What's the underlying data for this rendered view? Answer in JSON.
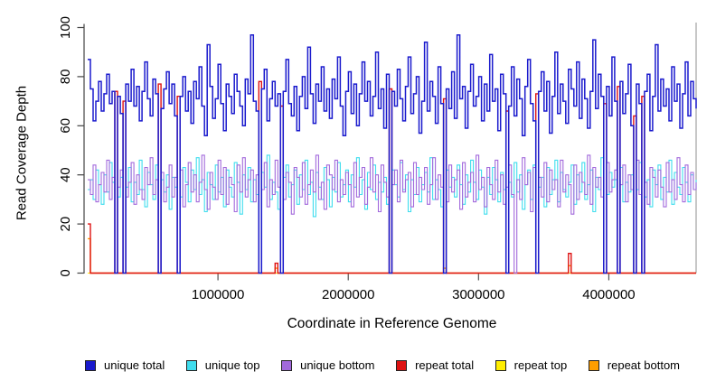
{
  "chart_data": {
    "type": "line",
    "step": true,
    "title": "",
    "xlabel": "Coordinate in Reference Genome",
    "ylabel": "Read Coverage Depth",
    "xlim": [
      0,
      4670000
    ],
    "ylim": [
      0,
      100
    ],
    "x_ticks": [
      1000000,
      2000000,
      3000000,
      4000000
    ],
    "y_ticks": [
      0,
      20,
      40,
      60,
      80,
      100
    ],
    "grid": false,
    "legend_position": "bottom",
    "n_points": 225,
    "x_step": 20848,
    "axis_color": "#444444",
    "tick_color": "#555555",
    "right_border_color": "#999999",
    "series": [
      {
        "name": "unique total",
        "color": "#1A1ACD",
        "values": [
          87,
          75,
          62,
          70,
          78,
          66,
          73,
          81,
          69,
          74,
          0,
          72,
          65,
          0,
          77,
          70,
          83,
          68,
          76,
          62,
          74,
          86,
          71,
          64,
          79,
          73,
          0,
          67,
          75,
          82,
          69,
          77,
          64,
          0,
          72,
          80,
          66,
          74,
          61,
          78,
          71,
          84,
          68,
          56,
          93,
          76,
          63,
          71,
          85,
          69,
          58,
          77,
          72,
          65,
          81,
          74,
          68,
          60,
          79,
          73,
          97,
          70,
          66,
          0,
          75,
          83,
          62,
          71,
          78,
          68,
          73,
          0,
          74,
          87,
          69,
          64,
          76,
          58,
          72,
          80,
          67,
          92,
          73,
          61,
          77,
          70,
          84,
          66,
          75,
          63,
          79,
          71,
          88,
          68,
          56,
          74,
          82,
          65,
          77,
          60,
          73,
          86,
          70,
          78,
          64,
          72,
          90,
          67,
          75,
          59,
          81,
          0,
          74,
          68,
          83,
          71,
          62,
          76,
          88,
          65,
          73,
          80,
          57,
          70,
          94,
          66,
          78,
          72,
          61,
          84,
          69,
          0,
          75,
          67,
          82,
          63,
          97,
          71,
          76,
          59,
          74,
          85,
          68,
          72,
          80,
          62,
          77,
          66,
          89,
          70,
          75,
          58,
          81,
          73,
          0,
          68,
          84,
          64,
          79,
          71,
          56,
          76,
          87,
          69,
          62,
          0,
          74,
          82,
          66,
          78,
          57,
          72,
          90,
          65,
          77,
          70,
          61,
          83,
          75,
          68,
          86,
          63,
          79,
          71,
          59,
          74,
          95,
          67,
          81,
          72,
          0,
          76,
          64,
          88,
          70,
          0,
          78,
          65,
          73,
          85,
          60,
          0,
          77,
          69,
          0,
          74,
          81,
          58,
          72,
          93,
          66,
          79,
          68,
          75,
          62,
          84,
          70,
          77,
          59,
          73,
          86,
          64,
          78,
          71,
          67
        ]
      },
      {
        "name": "unique top",
        "color": "#3FDDEE",
        "values": [
          34,
          38,
          30,
          42,
          36,
          28,
          40,
          33,
          45,
          37,
          0,
          31,
          39,
          0,
          35,
          43,
          29,
          37,
          32,
          46,
          34,
          27,
          41,
          36,
          30,
          44,
          0,
          38,
          33,
          40,
          26,
          39,
          35,
          0,
          31,
          43,
          37,
          29,
          42,
          34,
          47,
          32,
          38,
          25,
          41,
          36,
          30,
          44,
          33,
          39,
          27,
          42,
          35,
          31,
          45,
          37,
          24,
          40,
          34,
          43,
          29,
          38,
          32,
          0,
          41,
          35,
          48,
          30,
          37,
          33,
          26,
          0,
          39,
          44,
          31,
          36,
          42,
          28,
          40,
          34,
          46,
          32,
          37,
          23,
          41,
          35,
          30,
          43,
          38,
          27,
          39,
          33,
          45,
          31,
          36,
          42,
          29,
          40,
          35,
          47,
          32,
          38,
          26,
          41,
          34,
          44,
          30,
          37,
          33,
          39,
          28,
          0,
          42,
          36,
          31,
          45,
          34,
          40,
          25,
          38,
          32,
          43,
          29,
          36,
          41,
          33,
          47,
          30,
          38,
          34,
          27,
          0,
          42,
          35,
          39,
          31,
          44,
          36,
          28,
          40,
          33,
          46,
          37,
          30,
          42,
          35,
          24,
          39,
          32,
          43,
          38,
          29,
          41,
          34,
          0,
          37,
          31,
          45,
          33,
          40,
          26,
          36,
          42,
          30,
          44,
          0,
          35,
          39,
          27,
          43,
          32,
          38,
          46,
          29,
          41,
          34,
          31,
          37,
          44,
          28,
          40,
          33,
          45,
          30,
          36,
          42,
          25,
          39,
          34,
          47,
          0,
          32,
          41,
          35,
          38,
          0,
          43,
          29,
          37,
          33,
          40,
          0,
          34,
          45,
          0,
          31,
          38,
          27,
          42,
          36,
          44,
          30,
          39,
          33,
          46,
          28,
          41,
          35,
          32,
          43,
          37,
          29,
          40,
          34,
          38
        ]
      },
      {
        "name": "unique bottom",
        "color": "#A269DC",
        "values": [
          38,
          32,
          44,
          29,
          36,
          41,
          33,
          46,
          30,
          39,
          0,
          35,
          42,
          0,
          31,
          37,
          45,
          28,
          40,
          34,
          30,
          43,
          36,
          47,
          32,
          38,
          0,
          41,
          29,
          35,
          44,
          31,
          39,
          0,
          42,
          27,
          36,
          45,
          33,
          40,
          29,
          37,
          48,
          34,
          26,
          41,
          35,
          30,
          46,
          32,
          43,
          28,
          39,
          36,
          25,
          44,
          33,
          47,
          31,
          38,
          42,
          29,
          40,
          0,
          34,
          45,
          27,
          38,
          32,
          46,
          35,
          0,
          30,
          41,
          37,
          24,
          43,
          39,
          31,
          45,
          28,
          36,
          42,
          33,
          48,
          30,
          37,
          26,
          44,
          40,
          34,
          46,
          29,
          38,
          32,
          41,
          36,
          27,
          45,
          31,
          39,
          43,
          28,
          35,
          47,
          33,
          40,
          25,
          44,
          37,
          31,
          0,
          36,
          42,
          29,
          46,
          33,
          38,
          41,
          27,
          45,
          32,
          39,
          34,
          43,
          28,
          36,
          47,
          30,
          40,
          35,
          0,
          29,
          44,
          33,
          38,
          42,
          26,
          45,
          31,
          37,
          41,
          29,
          48,
          34,
          39,
          27,
          43,
          36,
          30,
          46,
          33,
          40,
          28,
          35,
          44,
          32,
          0,
          38,
          30,
          47,
          36,
          41,
          25,
          43,
          0,
          39,
          31,
          45,
          29,
          42,
          34,
          38,
          27,
          46,
          33,
          40,
          36,
          24,
          44,
          30,
          41,
          37,
          32,
          48,
          28,
          43,
          35,
          39,
          31,
          0,
          45,
          33,
          38,
          42,
          0,
          36,
          44,
          29,
          40,
          34,
          0,
          46,
          32,
          0,
          37,
          28,
          43,
          39,
          31,
          42,
          35,
          27,
          45,
          33,
          38,
          30,
          47,
          36,
          29,
          44,
          32,
          41,
          34,
          37
        ]
      },
      {
        "name": "repeat total",
        "color": "#DE1212",
        "default": 0,
        "spikes": {
          "0": 20,
          "10": 74,
          "13": 70,
          "26": 77,
          "33": 72,
          "63": 78,
          "69": 4,
          "71": 68,
          "111": 75,
          "131": 71,
          "154": 66,
          "165": 73,
          "177": 8,
          "190": 69,
          "195": 76,
          "201": 64,
          "204": 72
        }
      },
      {
        "name": "repeat top",
        "color": "#FFEE00",
        "default": 0,
        "spikes": {}
      },
      {
        "name": "repeat bottom",
        "color": "#FF9E00",
        "default": 0,
        "spikes": {
          "0": 14,
          "69": 2,
          "131": 2,
          "177": 3
        }
      }
    ]
  }
}
